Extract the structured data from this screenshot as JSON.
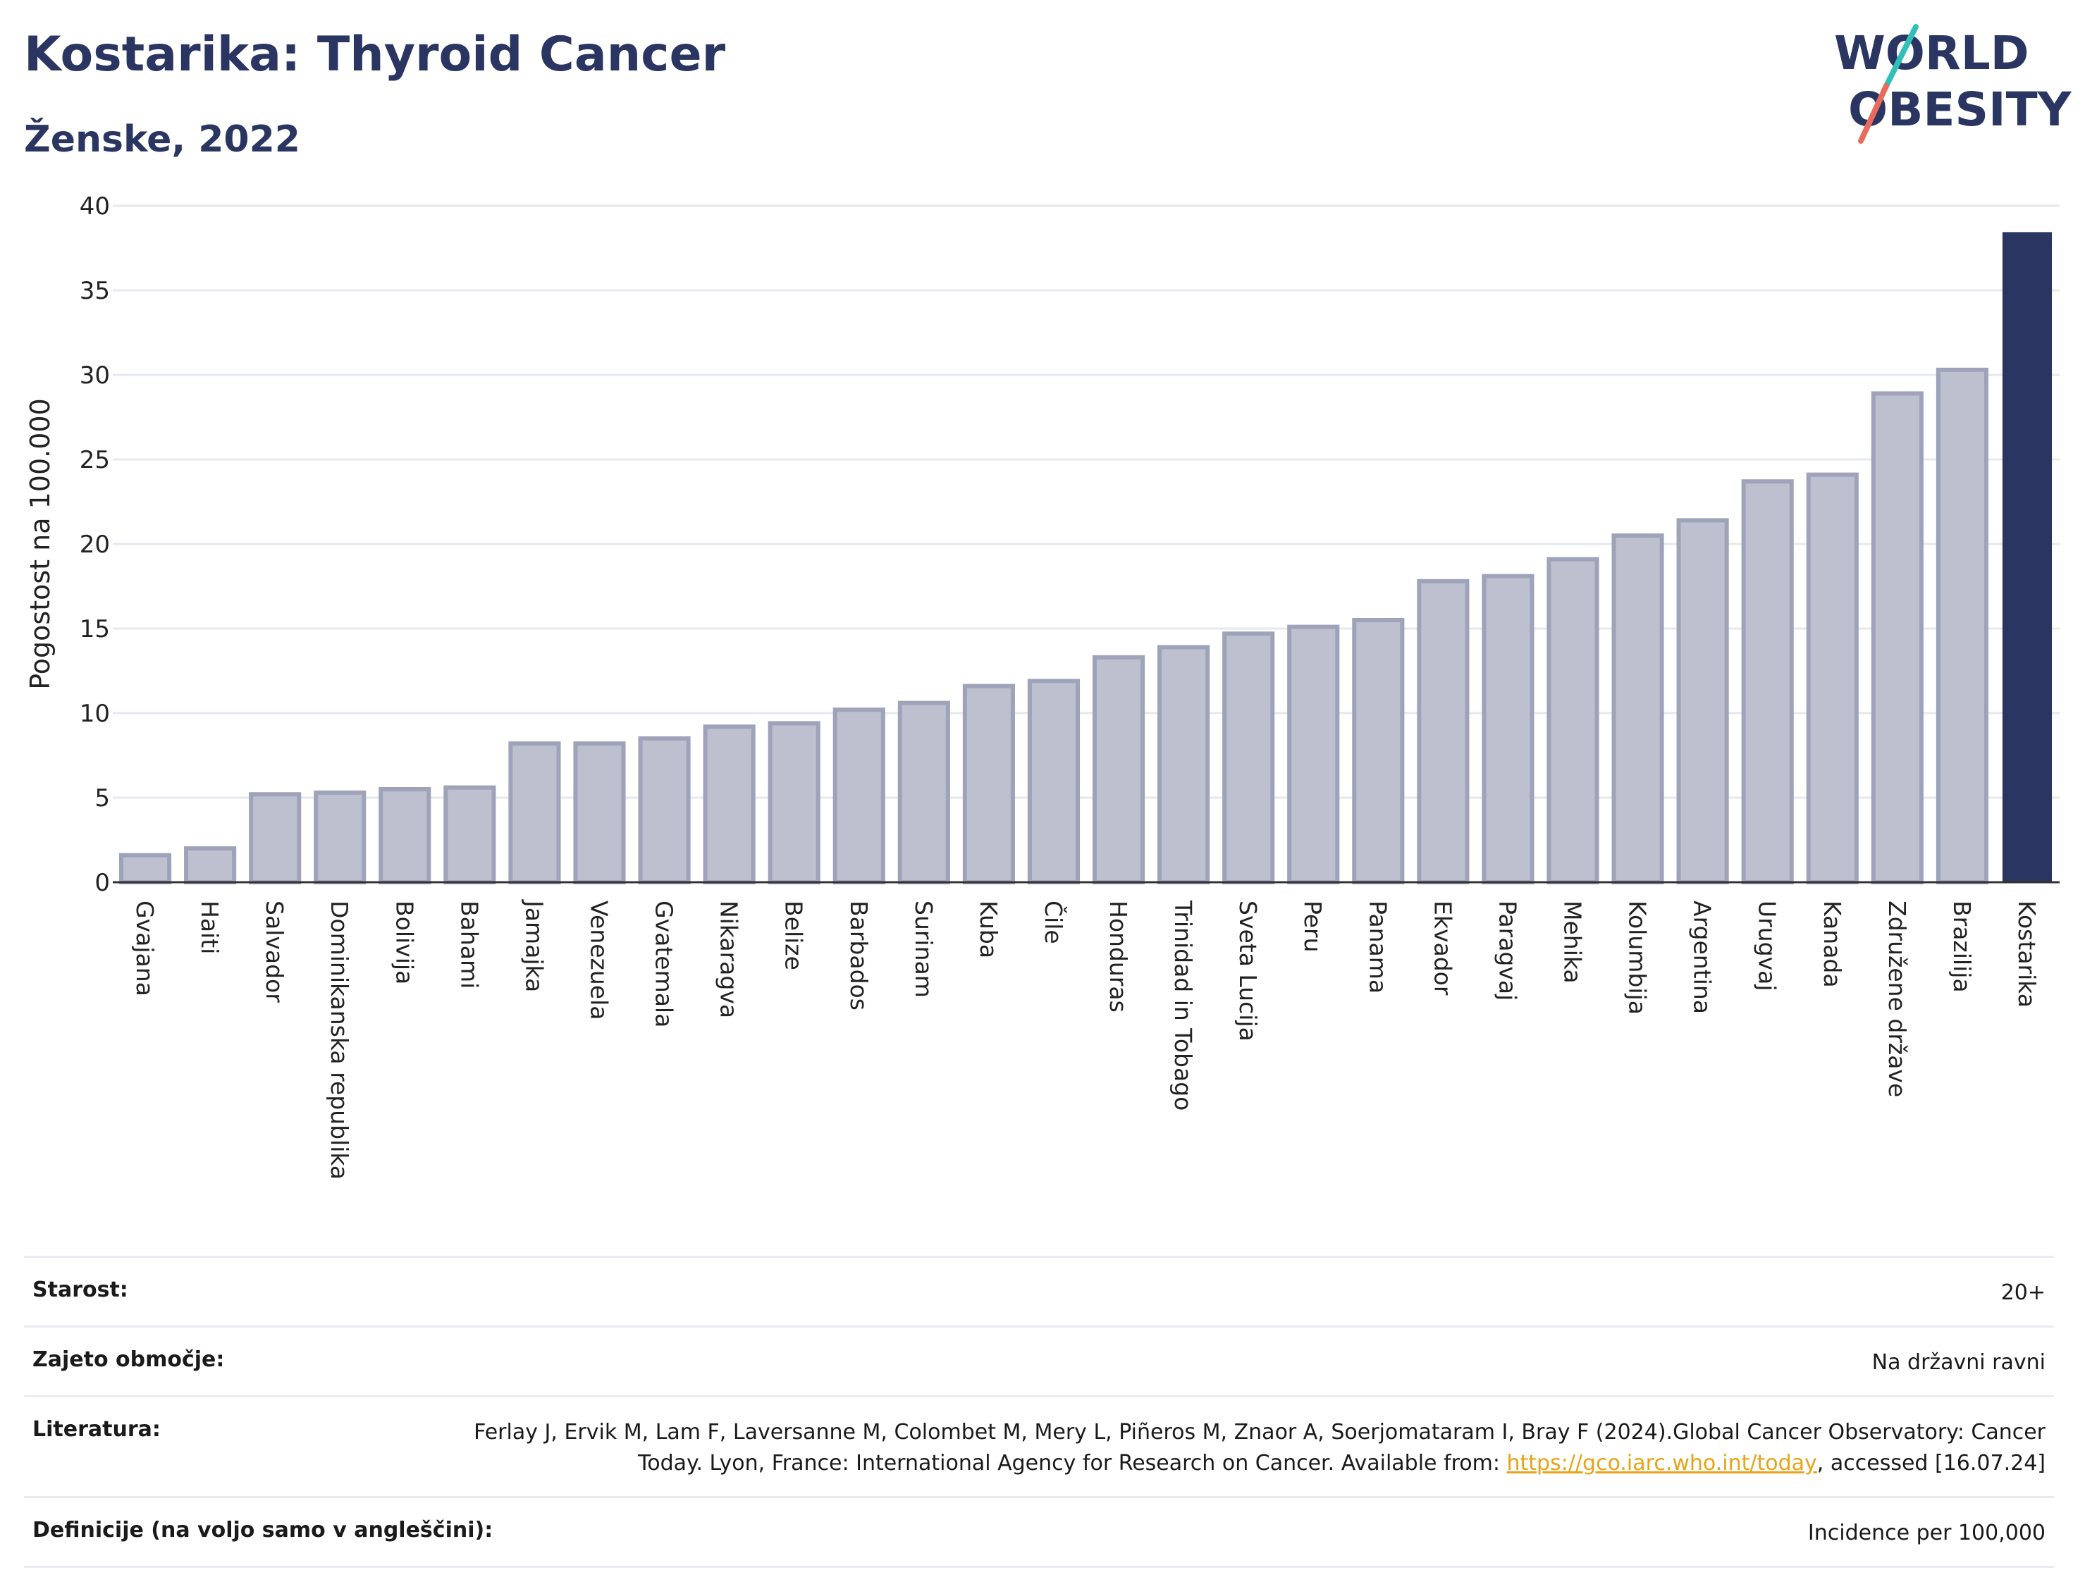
{
  "header": {
    "title": "Kostarika: Thyroid Cancer",
    "subtitle": "Ženske, 2022"
  },
  "logo": {
    "line1": "WORLD",
    "line2": "OBESITY"
  },
  "colors": {
    "bar": "#bcc0cf",
    "bar_border": "#9ea3ba",
    "highlight": "#2a3561",
    "grid": "#e6e8ef"
  },
  "chart_data": {
    "type": "bar",
    "ylabel": "Pogostost na 100.000",
    "ylim": [
      0,
      40
    ],
    "yticks": [
      "0",
      "5",
      "10",
      "15",
      "20",
      "25",
      "30",
      "35",
      "40"
    ],
    "grid": true,
    "highlight_category": "Kostarika",
    "categories": [
      "Gvajana",
      "Haiti",
      "Salvador",
      "Dominikanska republika",
      "Bolivija",
      "Bahami",
      "Jamajka",
      "Venezuela",
      "Gvatemala",
      "Nikaragva",
      "Belize",
      "Barbados",
      "Surinam",
      "Kuba",
      "Čile",
      "Honduras",
      "Trinidad in Tobago",
      "Sveta Lucija",
      "Peru",
      "Panama",
      "Ekvador",
      "Paragvaj",
      "Mehika",
      "Kolumbija",
      "Argentina",
      "Urugvaj",
      "Kanada",
      "Združene države",
      "Brazilija",
      "Kostarika"
    ],
    "values": [
      1.6,
      2.0,
      5.2,
      5.3,
      5.5,
      5.6,
      8.2,
      8.2,
      8.5,
      9.2,
      9.4,
      10.2,
      10.6,
      11.6,
      11.9,
      13.3,
      13.9,
      14.7,
      15.1,
      15.5,
      17.8,
      18.1,
      19.1,
      20.5,
      21.4,
      23.7,
      24.1,
      28.9,
      30.3,
      38.4
    ]
  },
  "meta": {
    "age_label": "Starost:",
    "age_value": "20+",
    "area_label": "Zajeto območje:",
    "area_value": "Na državni ravni",
    "lit_label": "Literatura:",
    "lit_text1": "Ferlay J, Ervik M, Lam F, Laversanne M, Colombet M, Mery L, Piñeros M, Znaor A, Soerjomataram I, Bray F (2024).Global Cancer Observatory: Cancer Today. Lyon, France: International Agency for Research on Cancer. Available from: ",
    "lit_link": "https://gco.iarc.who.int/today",
    "lit_text2": ", accessed [16.07.24]",
    "def_label": "Definicije (na voljo samo v angleščini):",
    "def_value": "Incidence per 100,000"
  }
}
